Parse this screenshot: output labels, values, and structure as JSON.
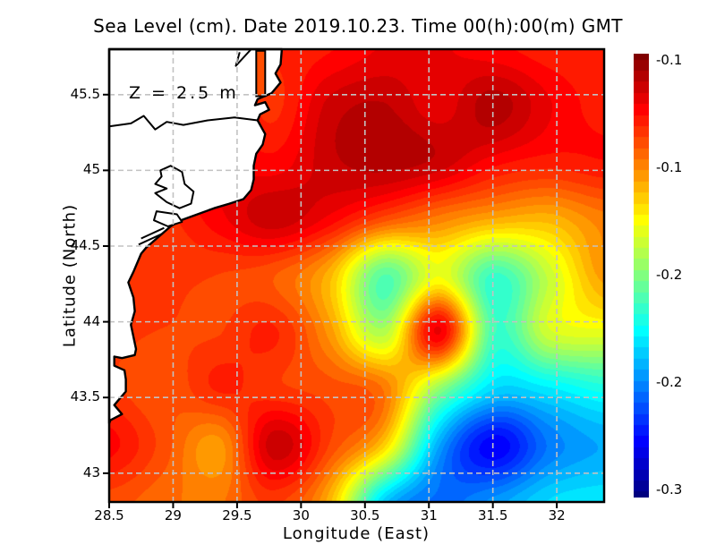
{
  "title": "Sea Level (cm). Date 2019.10.23. Time 00(h):00(m) GMT",
  "annotation": "Z = 2.5 m",
  "axes": {
    "x_label": "Longitude (East)",
    "y_label": "Latitude (North)",
    "x_tick_labels": [
      "28.5",
      "29",
      "29.5",
      "30",
      "30.5",
      "31",
      "31.5",
      "32"
    ],
    "x_tick_values": [
      28.5,
      29,
      29.5,
      30,
      30.5,
      31,
      31.5,
      32
    ],
    "y_tick_labels": [
      "45.5",
      "45",
      "44.5",
      "44",
      "43.5",
      "43"
    ],
    "y_tick_values": [
      45.5,
      45,
      44.5,
      44,
      43.5,
      43
    ]
  },
  "colorbar": {
    "tick_labels": [
      "-0.1",
      "-0.1",
      "-0.2",
      "-0.2",
      "-0.3"
    ],
    "orientation": "vertical",
    "top_value": -0.045,
    "bottom_value": -0.31
  },
  "chart_data": {
    "type": "heatmap",
    "title": "Sea Level (cm). Date 2019.10.23. Time 00(h):00(m) GMT",
    "xlabel": "Longitude (East)",
    "ylabel": "Latitude (North)",
    "x_range": [
      28.5,
      32.37
    ],
    "y_range": [
      42.81,
      45.8
    ],
    "grid": "dashed",
    "grid_color": "#c2c2c2",
    "frame_color": "#000000",
    "land_color": "#ffffff",
    "colormap": "jet",
    "quantize_levels": 40,
    "value_range": [
      -0.31,
      -0.045
    ],
    "legend_position": "right-colorbar",
    "grid_lon": [
      28.5,
      28.93,
      29.36,
      29.79,
      30.22,
      30.65,
      31.08,
      31.51,
      31.94,
      32.37
    ],
    "grid_lat": [
      45.8,
      45.43,
      45.05,
      44.68,
      44.31,
      43.93,
      43.56,
      43.18,
      42.81
    ],
    "values": [
      [
        -0.085,
        -0.085,
        -0.085,
        -0.087,
        -0.082,
        -0.074,
        -0.074,
        -0.079,
        -0.085,
        -0.087
      ],
      [
        -0.085,
        -0.079,
        -0.077,
        -0.09,
        -0.066,
        -0.061,
        -0.072,
        -0.058,
        -0.074,
        -0.085
      ],
      [
        -0.082,
        -0.077,
        -0.074,
        -0.079,
        -0.064,
        -0.058,
        -0.064,
        -0.079,
        -0.085,
        -0.082
      ],
      [
        -0.09,
        -0.09,
        -0.077,
        -0.064,
        -0.077,
        -0.098,
        -0.111,
        -0.122,
        -0.125,
        -0.111
      ],
      [
        -0.093,
        -0.093,
        -0.095,
        -0.101,
        -0.125,
        -0.188,
        -0.148,
        -0.196,
        -0.159,
        -0.118
      ],
      [
        -0.093,
        -0.095,
        -0.095,
        -0.087,
        -0.117,
        -0.164,
        -0.074,
        -0.193,
        -0.156,
        -0.15
      ],
      [
        -0.093,
        -0.101,
        -0.087,
        -0.093,
        -0.098,
        -0.109,
        -0.172,
        -0.22,
        -0.215,
        -0.204
      ],
      [
        -0.079,
        -0.098,
        -0.117,
        -0.064,
        -0.095,
        -0.132,
        -0.233,
        -0.278,
        -0.246,
        -0.233
      ],
      [
        -0.098,
        -0.106,
        -0.109,
        -0.093,
        -0.125,
        -0.223,
        -0.249,
        -0.238,
        -0.22,
        -0.215
      ]
    ],
    "coastline": {
      "land": [
        [
          29.85,
          45.8
        ],
        [
          29.84,
          45.7
        ],
        [
          29.8,
          45.64
        ],
        [
          29.84,
          45.58
        ],
        [
          29.77,
          45.51
        ],
        [
          29.66,
          45.47
        ],
        [
          29.64,
          45.43
        ],
        [
          29.72,
          45.45
        ],
        [
          29.75,
          45.4
        ],
        [
          29.68,
          45.37
        ],
        [
          29.66,
          45.33
        ],
        [
          29.72,
          45.24
        ],
        [
          29.7,
          45.17
        ],
        [
          29.65,
          45.11
        ],
        [
          29.63,
          45.03
        ],
        [
          29.63,
          44.94
        ],
        [
          29.61,
          44.87
        ],
        [
          29.55,
          44.81
        ],
        [
          29.44,
          44.78
        ],
        [
          29.32,
          44.75
        ],
        [
          29.19,
          44.71
        ],
        [
          29.06,
          44.67
        ],
        [
          28.98,
          44.63
        ],
        [
          28.79,
          44.49
        ],
        [
          28.75,
          44.45
        ],
        [
          28.69,
          44.33
        ],
        [
          28.65,
          44.26
        ],
        [
          28.69,
          44.16
        ],
        [
          28.7,
          44.07
        ],
        [
          28.67,
          43.98
        ],
        [
          28.71,
          43.82
        ],
        [
          28.7,
          43.78
        ],
        [
          28.6,
          43.76
        ],
        [
          28.54,
          43.77
        ],
        [
          28.54,
          43.71
        ],
        [
          28.62,
          43.68
        ],
        [
          28.63,
          43.62
        ],
        [
          28.63,
          43.54
        ],
        [
          28.58,
          43.49
        ],
        [
          28.54,
          43.45
        ],
        [
          28.6,
          43.39
        ],
        [
          28.51,
          43.35
        ],
        [
          28.5,
          43.33
        ],
        [
          28.5,
          45.8
        ]
      ],
      "inlets": [
        {
          "points": [
            [
              29.65,
              45.79
            ],
            [
              29.72,
              45.79
            ],
            [
              29.72,
              45.49
            ],
            [
              29.65,
              45.49
            ]
          ],
          "closed": true,
          "fill_value": -0.098
        }
      ],
      "contours": [
        {
          "points": [
            [
              28.5,
              45.29
            ],
            [
              28.67,
              45.31
            ],
            [
              28.77,
              45.36
            ],
            [
              28.86,
              45.27
            ],
            [
              28.95,
              45.32
            ],
            [
              29.08,
              45.3
            ],
            [
              29.27,
              45.33
            ],
            [
              29.48,
              45.35
            ],
            [
              29.66,
              45.33
            ]
          ],
          "closed": false
        },
        {
          "points": [
            [
              28.9,
              45.0
            ],
            [
              28.98,
              45.03
            ],
            [
              29.07,
              44.99
            ],
            [
              29.09,
              44.91
            ],
            [
              29.16,
              44.86
            ],
            [
              29.14,
              44.78
            ],
            [
              29.05,
              44.75
            ],
            [
              28.95,
              44.79
            ],
            [
              28.86,
              44.85
            ],
            [
              28.95,
              44.88
            ],
            [
              28.86,
              44.91
            ],
            [
              28.91,
              44.96
            ]
          ],
          "closed": true
        },
        {
          "points": [
            [
              28.87,
              44.73
            ],
            [
              29.03,
              44.71
            ],
            [
              29.07,
              44.66
            ],
            [
              28.96,
              44.63
            ],
            [
              28.85,
              44.67
            ]
          ],
          "closed": true
        },
        {
          "points": [
            [
              29.61,
              45.8
            ],
            [
              29.49,
              45.69
            ],
            [
              29.52,
              45.78
            ]
          ],
          "closed": false
        },
        {
          "points": [
            [
              28.75,
              44.55
            ],
            [
              28.93,
              44.62
            ]
          ],
          "closed": false
        },
        {
          "points": [
            [
              28.73,
              44.51
            ],
            [
              28.91,
              44.58
            ]
          ],
          "closed": false
        }
      ]
    }
  }
}
